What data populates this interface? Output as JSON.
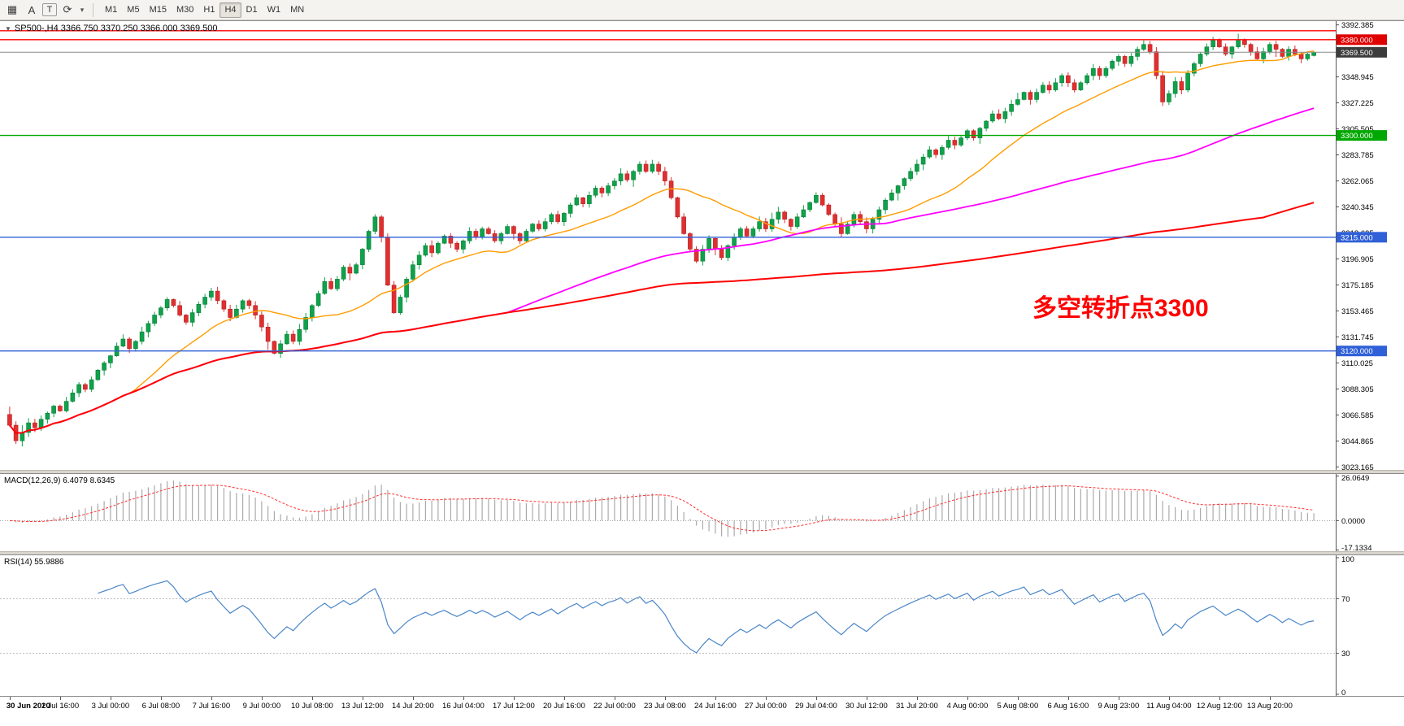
{
  "toolbar": {
    "left_buttons": [
      {
        "name": "new-chart-icon",
        "glyph": "▦"
      },
      {
        "name": "auto-scroll-button",
        "glyph": "A"
      },
      {
        "name": "templates-button",
        "glyph": "T"
      },
      {
        "name": "refresh-icon",
        "glyph": "⟳"
      },
      {
        "name": "refresh-dropdown-caret-icon",
        "glyph": "▾"
      }
    ],
    "timeframes": [
      "M1",
      "M5",
      "M15",
      "M30",
      "H1",
      "H4",
      "D1",
      "W1",
      "MN"
    ],
    "selected_timeframe": "H4"
  },
  "chart": {
    "title_text": "SP500-,H4  3366.750 3370.250 3366.000 3369.500",
    "annotation": {
      "text": "多空转折点3300",
      "color": "#FF0000"
    },
    "price_axis": {
      "view_max": 3395.5,
      "view_min": 3020.0,
      "ticks": [
        "3392.385",
        "3370.665",
        "3348.945",
        "3327.225",
        "3305.505",
        "3283.785",
        "3262.065",
        "3240.345",
        "3218.625",
        "3196.905",
        "3175.185",
        "3153.465",
        "3131.745",
        "3110.025",
        "3088.305",
        "3066.585",
        "3044.865",
        "3023.165"
      ]
    },
    "hlines": [
      {
        "value": 3387.5,
        "color": "#FF0000",
        "width": 1.4
      },
      {
        "value": 3380.0,
        "color": "#FF0000",
        "width": 1.4,
        "label": "3380.000",
        "label_bg": "#DF0000"
      },
      {
        "value": 3369.5,
        "color": "#8a8a8a",
        "width": 1,
        "label": "3369.500",
        "label_bg": "#3C3C3C",
        "current": true
      },
      {
        "value": 3300.0,
        "color": "#00A800",
        "width": 1.4,
        "label": "3300.000",
        "label_bg": "#00A800"
      },
      {
        "value": 3215.0,
        "color": "#3060D8",
        "width": 1.4,
        "label": "3215.000",
        "label_bg": "#3060D8"
      },
      {
        "value": 3120.0,
        "color": "#3060D8",
        "width": 1.4,
        "label": "3120.000",
        "label_bg": "#3060D8"
      }
    ]
  },
  "chart_data": {
    "type": "candlestick",
    "symbol": "SP500-",
    "period": "H4",
    "current_bar": {
      "open": 3366.75,
      "high": 3370.25,
      "low": 3366.0,
      "close": 3369.5
    },
    "bars_per_label": 8,
    "x_labels": [
      "30 Jun 2020",
      "1 Jul 16:00",
      "3 Jul 00:00",
      "6 Jul 08:00",
      "7 Jul 16:00",
      "9 Jul 00:00",
      "10 Jul 08:00",
      "13 Jul 12:00",
      "14 Jul 20:00",
      "16 Jul 04:00",
      "17 Jul 12:00",
      "20 Jul 16:00",
      "22 Jul 00:00",
      "23 Jul 08:00",
      "24 Jul 16:00",
      "27 Jul 00:00",
      "29 Jul 04:00",
      "30 Jul 12:00",
      "31 Jul 20:00",
      "4 Aug 00:00",
      "5 Aug 08:00",
      "6 Aug 16:00",
      "9 Aug 23:00",
      "11 Aug 04:00",
      "12 Aug 12:00",
      "13 Aug 20:00"
    ],
    "closes": [
      3058,
      3045,
      3052,
      3060,
      3056,
      3063,
      3068,
      3074,
      3070,
      3078,
      3085,
      3092,
      3088,
      3096,
      3104,
      3110,
      3116,
      3124,
      3130,
      3122,
      3128,
      3136,
      3143,
      3150,
      3156,
      3163,
      3158,
      3150,
      3144,
      3152,
      3159,
      3165,
      3170,
      3162,
      3155,
      3148,
      3155,
      3162,
      3158,
      3150,
      3140,
      3128,
      3118,
      3126,
      3134,
      3128,
      3138,
      3148,
      3158,
      3168,
      3178,
      3172,
      3180,
      3190,
      3185,
      3192,
      3205,
      3220,
      3232,
      3215,
      3175,
      3152,
      3165,
      3180,
      3192,
      3200,
      3208,
      3202,
      3210,
      3216,
      3210,
      3205,
      3212,
      3220,
      3215,
      3222,
      3218,
      3212,
      3218,
      3224,
      3218,
      3212,
      3220,
      3226,
      3222,
      3228,
      3234,
      3228,
      3235,
      3242,
      3248,
      3243,
      3250,
      3256,
      3252,
      3258,
      3262,
      3268,
      3263,
      3270,
      3276,
      3270,
      3276,
      3270,
      3262,
      3248,
      3232,
      3218,
      3205,
      3195,
      3205,
      3214,
      3205,
      3198,
      3208,
      3215,
      3222,
      3216,
      3222,
      3228,
      3222,
      3230,
      3236,
      3230,
      3224,
      3232,
      3238,
      3244,
      3250,
      3242,
      3234,
      3226,
      3218,
      3226,
      3234,
      3228,
      3222,
      3230,
      3238,
      3246,
      3252,
      3258,
      3264,
      3270,
      3276,
      3282,
      3288,
      3284,
      3290,
      3296,
      3292,
      3298,
      3304,
      3298,
      3306,
      3312,
      3318,
      3314,
      3320,
      3326,
      3330,
      3336,
      3330,
      3336,
      3342,
      3338,
      3344,
      3350,
      3344,
      3338,
      3344,
      3350,
      3356,
      3350,
      3356,
      3362,
      3366,
      3360,
      3366,
      3372,
      3376,
      3370,
      3350,
      3328,
      3335,
      3345,
      3338,
      3352,
      3360,
      3368,
      3374,
      3380,
      3374,
      3368,
      3374,
      3380,
      3376,
      3370,
      3364,
      3370,
      3376,
      3372,
      3366,
      3372,
      3368,
      3364,
      3368,
      3369.5
    ],
    "moving_averages": [
      {
        "name": "fast-ma",
        "period": 20,
        "color": "#FF9C00",
        "width": 1.4
      },
      {
        "name": "medium-ma",
        "period": 80,
        "color": "#FF00FF",
        "width": 1.8
      },
      {
        "name": "slow-ma",
        "period": 200,
        "color": "#FF0000",
        "width": 2
      }
    ],
    "indicators": {
      "macd": {
        "title": "MACD(12,26,9) 6.4079 8.6345",
        "fast": 12,
        "slow": 26,
        "signal": 9,
        "axis_labels": [
          "26.0649",
          "0.0000",
          "-17.1334"
        ],
        "histogram_color": "#ABABAB",
        "signal_color": "#FF3030"
      },
      "rsi": {
        "title": "RSI(14) 55.9886",
        "period": 14,
        "axis_labels": [
          "100",
          "70",
          "30",
          "0"
        ],
        "levels": [
          70,
          30
        ],
        "line_color": "#4B86C8"
      }
    }
  }
}
